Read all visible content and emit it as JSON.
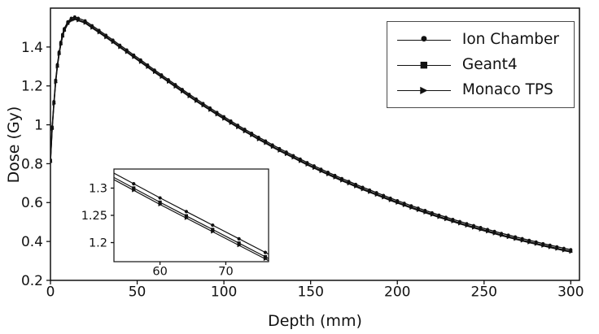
{
  "chart_data": {
    "type": "line",
    "title": "",
    "xlabel": "Depth (mm)",
    "ylabel": "Dose (Gy)",
    "xlim": [
      0,
      305
    ],
    "ylim": [
      0.2,
      1.6
    ],
    "xticks": [
      0,
      50,
      100,
      150,
      200,
      250,
      300
    ],
    "xtick_labels": [
      "0",
      "50",
      "100",
      "150",
      "200",
      "250",
      "300"
    ],
    "yticks": [
      0.2,
      0.4,
      0.6,
      0.8,
      1.0,
      1.2,
      1.4
    ],
    "ytick_labels": [
      "0.2",
      "0.4",
      "0.6",
      "0.8",
      "1",
      "1.2",
      "1.4"
    ],
    "grid": false,
    "legend_position": "upper-right",
    "line_color": "#111111",
    "x": [
      0,
      1,
      2,
      3,
      4,
      5,
      6,
      7,
      8,
      10,
      12,
      14,
      16,
      20,
      24,
      28,
      32,
      36,
      40,
      44,
      48,
      52,
      56,
      60,
      64,
      68,
      72,
      76,
      80,
      84,
      88,
      92,
      96,
      100,
      104,
      108,
      112,
      116,
      120,
      124,
      128,
      132,
      136,
      140,
      144,
      148,
      152,
      156,
      160,
      164,
      168,
      172,
      176,
      180,
      184,
      188,
      192,
      196,
      200,
      204,
      208,
      212,
      216,
      220,
      224,
      228,
      232,
      236,
      240,
      244,
      248,
      252,
      256,
      260,
      264,
      268,
      272,
      276,
      280,
      284,
      288,
      292,
      296,
      300
    ],
    "series": [
      {
        "name": "Ion Chamber",
        "marker": "circle",
        "values": [
          0.82,
          0.99,
          1.12,
          1.23,
          1.31,
          1.375,
          1.425,
          1.465,
          1.495,
          1.53,
          1.548,
          1.555,
          1.548,
          1.535,
          1.51,
          1.486,
          1.461,
          1.436,
          1.41,
          1.385,
          1.359,
          1.334,
          1.308,
          1.282,
          1.257,
          1.232,
          1.207,
          1.182,
          1.157,
          1.133,
          1.11,
          1.087,
          1.064,
          1.042,
          1.02,
          0.998,
          0.977,
          0.957,
          0.936,
          0.917,
          0.897,
          0.878,
          0.86,
          0.842,
          0.824,
          0.806,
          0.789,
          0.772,
          0.756,
          0.74,
          0.724,
          0.709,
          0.694,
          0.679,
          0.665,
          0.651,
          0.637,
          0.623,
          0.61,
          0.597,
          0.584,
          0.572,
          0.56,
          0.548,
          0.536,
          0.525,
          0.514,
          0.503,
          0.492,
          0.482,
          0.472,
          0.462,
          0.452,
          0.442,
          0.433,
          0.424,
          0.415,
          0.406,
          0.398,
          0.389,
          0.381,
          0.373,
          0.365,
          0.358
        ]
      },
      {
        "name": "Geant4",
        "marker": "square",
        "values": [
          0.812,
          0.982,
          1.112,
          1.222,
          1.302,
          1.367,
          1.417,
          1.457,
          1.487,
          1.522,
          1.54,
          1.547,
          1.54,
          1.527,
          1.502,
          1.478,
          1.453,
          1.428,
          1.402,
          1.377,
          1.351,
          1.326,
          1.3,
          1.274,
          1.249,
          1.224,
          1.199,
          1.174,
          1.149,
          1.125,
          1.102,
          1.079,
          1.056,
          1.034,
          1.012,
          0.99,
          0.969,
          0.949,
          0.928,
          0.909,
          0.889,
          0.87,
          0.852,
          0.834,
          0.816,
          0.798,
          0.781,
          0.764,
          0.748,
          0.732,
          0.716,
          0.701,
          0.686,
          0.671,
          0.657,
          0.643,
          0.629,
          0.615,
          0.602,
          0.589,
          0.576,
          0.564,
          0.552,
          0.54,
          0.528,
          0.517,
          0.506,
          0.495,
          0.484,
          0.474,
          0.464,
          0.454,
          0.444,
          0.434,
          0.425,
          0.416,
          0.407,
          0.398,
          0.39,
          0.381,
          0.373,
          0.365,
          0.357,
          0.35
        ]
      },
      {
        "name": "Monaco TPS",
        "marker": "triangle-right",
        "values": [
          0.808,
          0.978,
          1.108,
          1.218,
          1.298,
          1.363,
          1.413,
          1.453,
          1.483,
          1.518,
          1.536,
          1.543,
          1.536,
          1.523,
          1.498,
          1.474,
          1.449,
          1.424,
          1.398,
          1.373,
          1.347,
          1.322,
          1.296,
          1.27,
          1.245,
          1.22,
          1.195,
          1.17,
          1.145,
          1.121,
          1.098,
          1.075,
          1.052,
          1.03,
          1.008,
          0.986,
          0.965,
          0.945,
          0.924,
          0.905,
          0.885,
          0.866,
          0.848,
          0.83,
          0.812,
          0.794,
          0.777,
          0.76,
          0.744,
          0.728,
          0.712,
          0.697,
          0.682,
          0.667,
          0.653,
          0.639,
          0.625,
          0.611,
          0.598,
          0.585,
          0.572,
          0.56,
          0.548,
          0.536,
          0.524,
          0.513,
          0.502,
          0.491,
          0.48,
          0.47,
          0.46,
          0.45,
          0.44,
          0.43,
          0.421,
          0.412,
          0.403,
          0.394,
          0.386,
          0.377,
          0.369,
          0.361,
          0.353,
          0.346
        ]
      }
    ],
    "inset": {
      "xlim": [
        53,
        76.5
      ],
      "ylim": [
        1.165,
        1.335
      ],
      "xticks": [
        60,
        70
      ],
      "xtick_labels": [
        "60",
        "70"
      ],
      "yticks": [
        1.2,
        1.25,
        1.3
      ],
      "ytick_labels": [
        "1.2",
        "1.25",
        "1.3"
      ]
    }
  }
}
